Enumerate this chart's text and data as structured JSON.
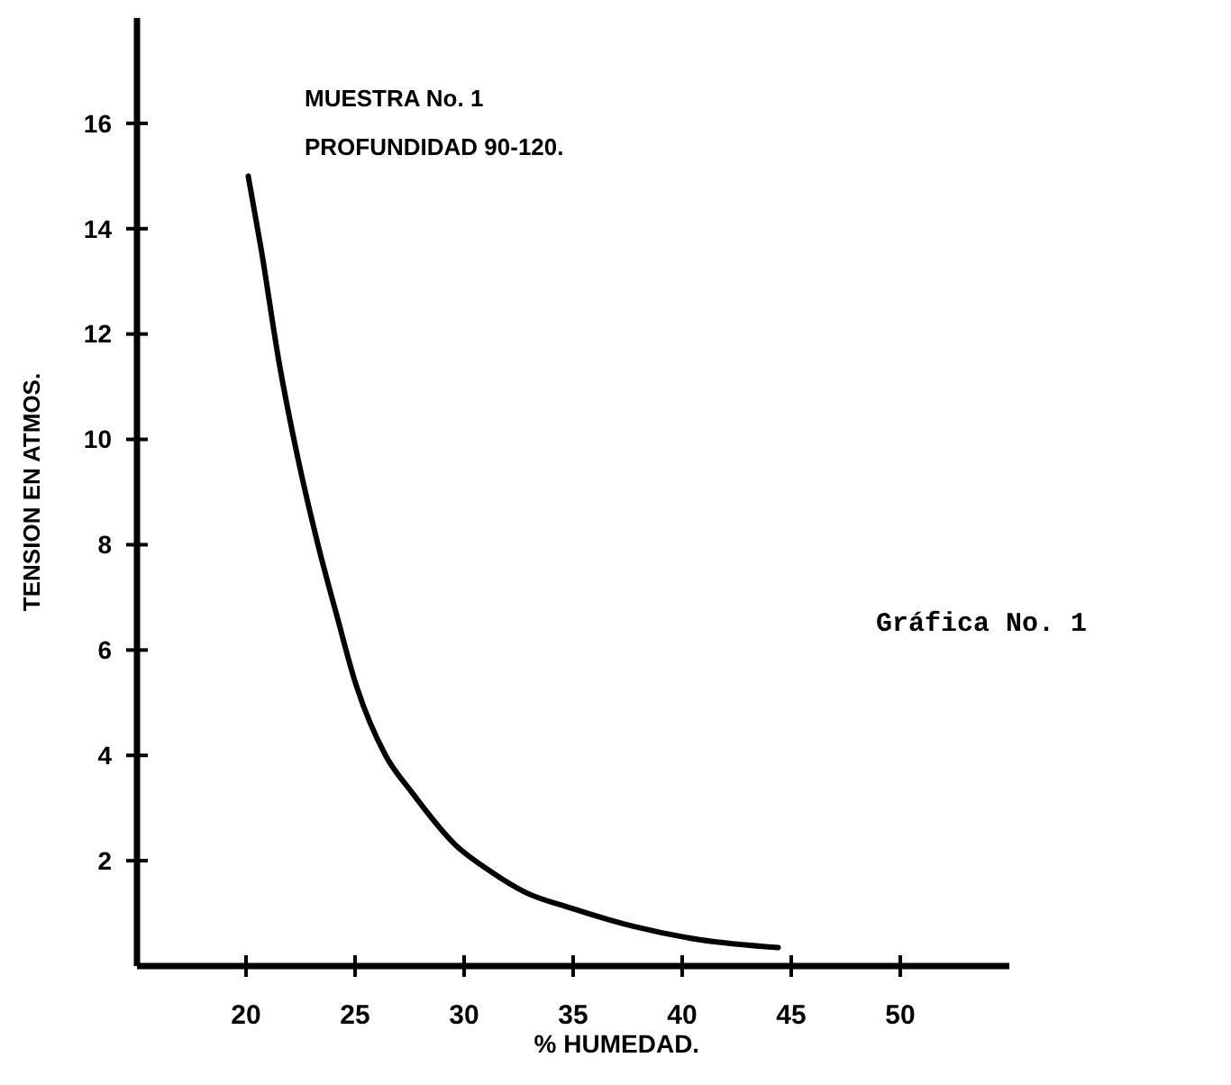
{
  "chart_data": {
    "type": "line",
    "xlabel": "% HUMEDAD.",
    "ylabel": "TENSION EN ATMOS.",
    "annotations": [
      "MUESTRA No. 1",
      "PROFUNDIDAD 90-120.",
      "Gráfica No. 1"
    ],
    "x": [
      20.1,
      20.7,
      21.5,
      22.4,
      23.3,
      24.2,
      25.0,
      26.4,
      27.6,
      29.6,
      31.2,
      32.8,
      34.9,
      37.8,
      40.8,
      44.4
    ],
    "series": [
      {
        "color": "#000000",
        "values": [
          15.0,
          13.6,
          11.5,
          9.6,
          8.0,
          6.6,
          5.4,
          4.0,
          3.3,
          2.3,
          1.8,
          1.4,
          1.1,
          0.75,
          0.5,
          0.35
        ]
      }
    ],
    "xlim": [
      15,
      55
    ],
    "xticks": [
      20,
      25,
      30,
      35,
      40,
      45,
      50
    ],
    "ylim": [
      0,
      18
    ],
    "yticks": [
      2,
      4,
      6,
      8,
      10,
      12,
      14,
      16
    ],
    "grid": false,
    "marker": "none",
    "line_style": "solid"
  }
}
